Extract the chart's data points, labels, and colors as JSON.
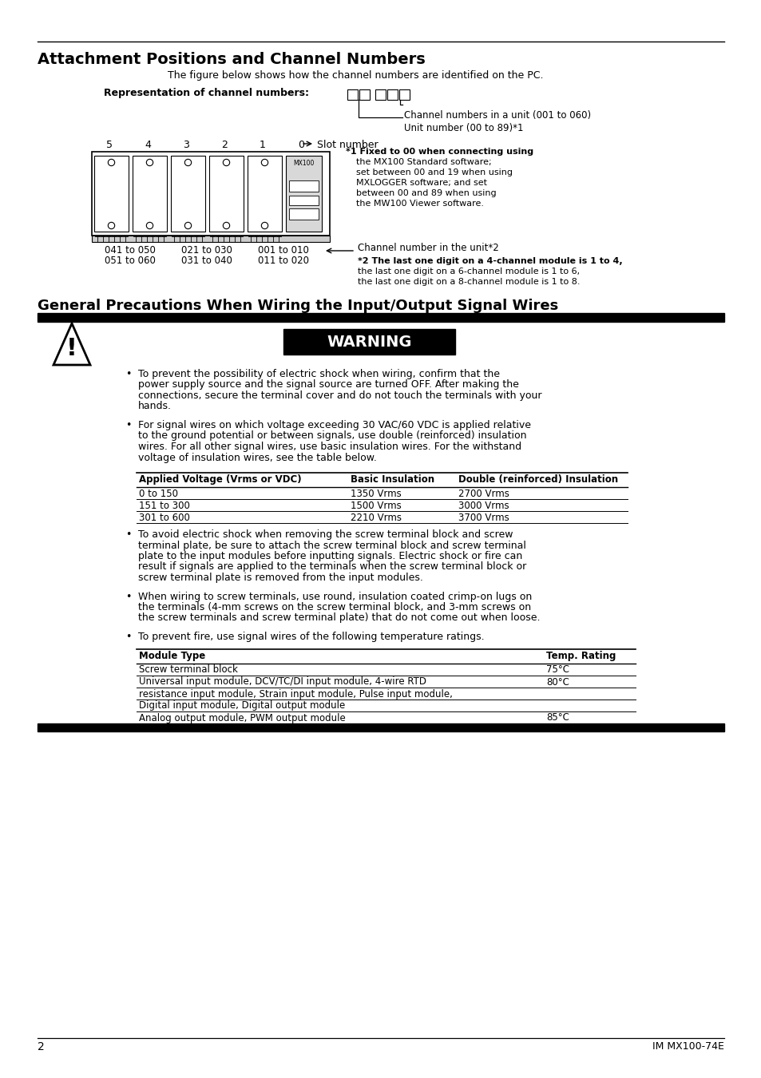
{
  "title": "Attachment Positions and Channel Numbers",
  "subtitle": "The figure below shows how the channel numbers are identified on the PC.",
  "rep_label": "Representation of channel numbers:",
  "channel_label1": "Channel numbers in a unit (001 to 060)",
  "channel_label2": "Unit number (00 to 89)*1",
  "slot_label": "Slot number",
  "slot_numbers": [
    "5",
    "4",
    "3",
    "2",
    "1",
    "0"
  ],
  "footnote1_lines": [
    "*1 Fixed to 00 when connecting using",
    "the MX100 Standard software;",
    "set between 00 and 19 when using",
    "MXLOGGER software; and set",
    "between 00 and 89 when using",
    "the MW100 Viewer software."
  ],
  "ch_numbers_label": "Channel number in the unit*2",
  "footnote2_lines": [
    "*2 The last one digit on a 4-channel module is 1 to 4,",
    "the last one digit on a 6-channel module is 1 to 6,",
    "the last one digit on a 8-channel module is 1 to 8."
  ],
  "section2_title": "General Precautions When Wiring the Input/Output Signal Wires",
  "warning_text": "WARNING",
  "bullet1_lines": [
    "To prevent the possibility of electric shock when wiring, confirm that the",
    "power supply source and the signal source are turned OFF. After making the",
    "connections, secure the terminal cover and do not touch the terminals with your",
    "hands."
  ],
  "bullet2_lines": [
    "For signal wires on which voltage exceeding 30 VAC/60 VDC is applied relative",
    "to the ground potential or between signals, use double (reinforced) insulation",
    "wires. For all other signal wires, use basic insulation wires. For the withstand",
    "voltage of insulation wires, see the table below."
  ],
  "table1_headers": [
    "Applied Voltage (Vrms or VDC)",
    "Basic Insulation",
    "Double (reinforced) Insulation"
  ],
  "table1_rows": [
    [
      "0 to 150",
      "1350 Vrms",
      "2700 Vrms"
    ],
    [
      "151 to 300",
      "1500 Vrms",
      "3000 Vrms"
    ],
    [
      "301 to 600",
      "2210 Vrms",
      "3700 Vrms"
    ]
  ],
  "bullet3_lines": [
    "To avoid electric shock when removing the screw terminal block and screw",
    "terminal plate, be sure to attach the screw terminal block and screw terminal",
    "plate to the input modules before inputting signals. Electric shock or fire can",
    "result if signals are applied to the terminals when the screw terminal block or",
    "screw terminal plate is removed from the input modules."
  ],
  "bullet4_lines": [
    "When wiring to screw terminals, use round, insulation coated crimp-on lugs on",
    "the terminals (4-mm screws on the screw terminal block, and 3-mm screws on",
    "the screw terminals and screw terminal plate) that do not come out when loose."
  ],
  "bullet5": "To prevent fire, use signal wires of the following temperature ratings.",
  "table2_headers": [
    "Module Type",
    "Temp. Rating"
  ],
  "table2_rows": [
    [
      "Screw terminal block",
      "75°C"
    ],
    [
      "Universal input module, DCV/TC/DI input module, 4-wire RTD",
      "80°C"
    ],
    [
      "resistance input module, Strain input module, Pulse input module,",
      ""
    ],
    [
      "Digital input module, Digital output module",
      ""
    ],
    [
      "Analog output module, PWM output module",
      "85°C"
    ]
  ],
  "page_number": "2",
  "doc_number": "IM MX100-74E"
}
